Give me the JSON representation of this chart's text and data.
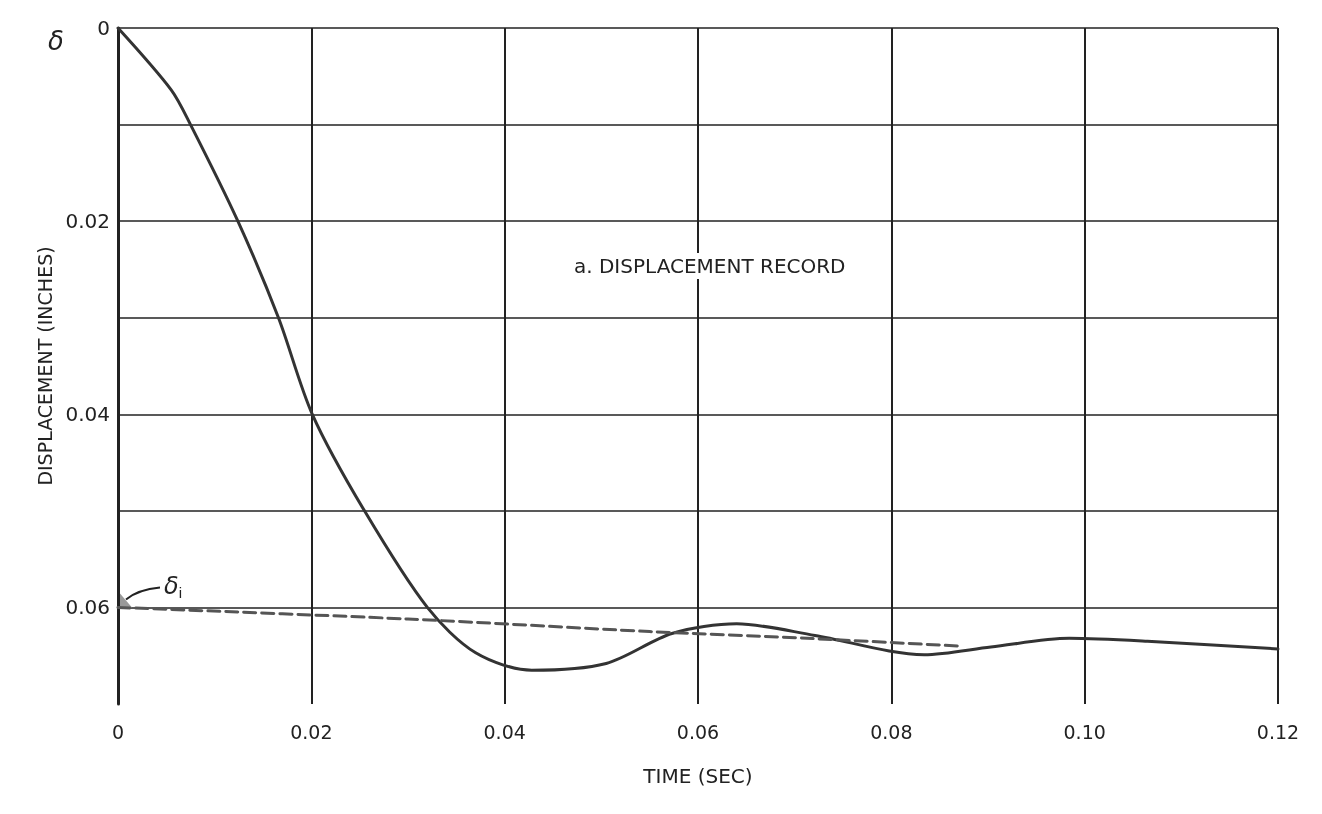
{
  "chart_data": {
    "type": "line",
    "xlabel": "TIME (SEC)",
    "ylabel": "DISPLACEMENT (INCHES)",
    "annotations": [
      "δ",
      "a. DISPLACEMENT RECORD",
      {
        "text": "δ$_{i}$",
        "x": 0,
        "y": 0.06
      }
    ],
    "xlim": [
      0,
      0.12
    ],
    "ylim": [
      0.07,
      0
    ],
    "xticks": [
      0,
      0.02,
      0.04,
      0.06,
      0.08,
      {
        "value": 0.1,
        "label": "0.10"
      },
      0.12
    ],
    "yticks": [
      0,
      {
        "value": 0.01,
        "label": null
      },
      0.02,
      {
        "value": 0.03,
        "label": null
      },
      0.04,
      {
        "value": 0.05,
        "label": null
      },
      0.06
    ],
    "grid": true,
    "marker": "none",
    "series": [
      {
        "color": "#333333",
        "line_style": "solid",
        "x": [
          0,
          0.0055,
          0.0075,
          0.0124,
          0.0166,
          0.0201,
          0.0255,
          0.032,
          0.037,
          0.0428,
          0.0505,
          0.0573,
          0.064,
          0.0721,
          0.0834,
          0.0903,
          0.0984,
          0.1065,
          0.12
        ],
        "values": [
          0,
          0.0064,
          0.01,
          0.02,
          0.03,
          0.04,
          0.05,
          0.06,
          0.0647,
          0.0665,
          0.0658,
          0.0627,
          0.0617,
          0.0629,
          0.0649,
          0.0641,
          0.0632,
          0.0635,
          0.0643
        ]
      },
      {
        "color": "#555555",
        "line_style": "dashed",
        "x": [
          0,
          0.03,
          0.055,
          0.0713,
          0.087
        ],
        "values": [
          0.06,
          0.0612,
          0.0625,
          0.0632,
          0.064
        ]
      }
    ]
  }
}
